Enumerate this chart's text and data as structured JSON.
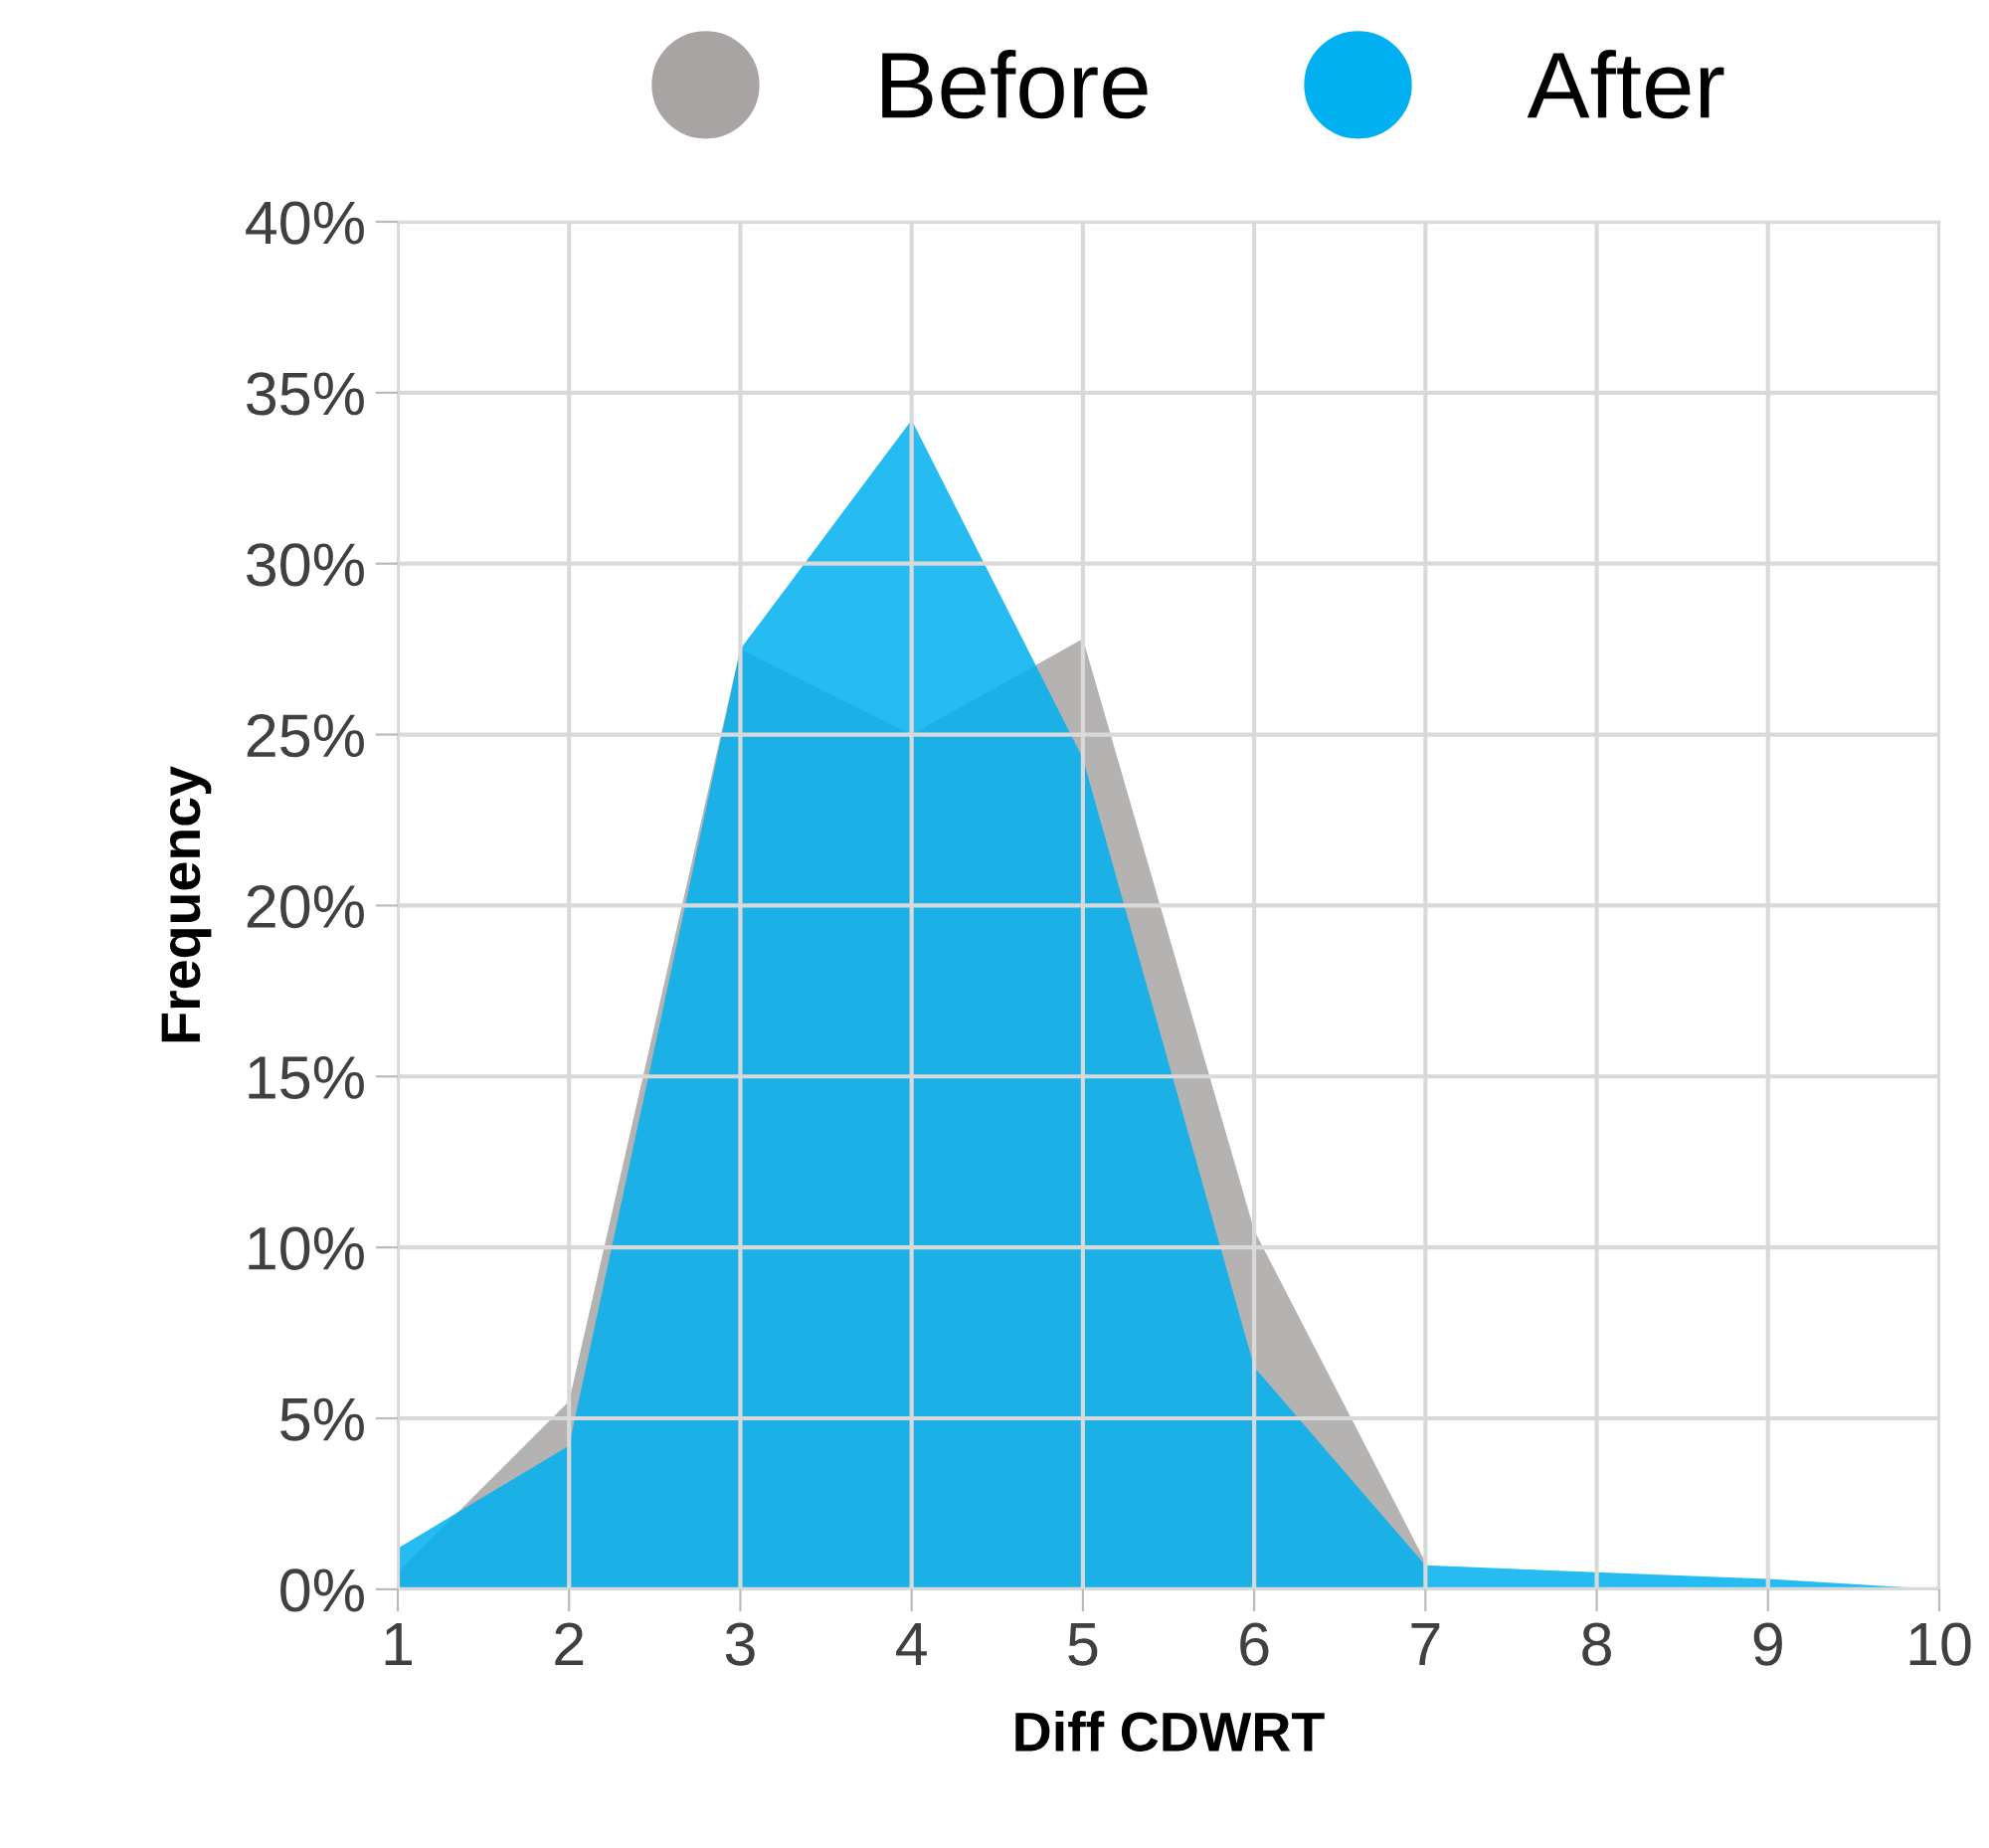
{
  "chart_data": {
    "type": "area",
    "xlabel": "Diff CDWRT",
    "ylabel": "Frequency",
    "x": [
      1,
      2,
      3,
      4,
      5,
      6,
      7,
      8,
      9,
      10
    ],
    "series": [
      {
        "name": "Before",
        "color": "#a8a4a4",
        "values": [
          0.5,
          5.5,
          27.5,
          25,
          27.8,
          10.5,
          0.8,
          null,
          null,
          null
        ]
      },
      {
        "name": "After",
        "color": "#00b0f0",
        "values": [
          1.2,
          4.2,
          27.5,
          34.2,
          24.3,
          6.5,
          0.7,
          0.5,
          0.3,
          0
        ]
      }
    ],
    "xlim": [
      1,
      10
    ],
    "xticks": [
      1,
      2,
      3,
      4,
      5,
      6,
      7,
      8,
      9,
      10
    ],
    "ylim": [
      0,
      40
    ],
    "yticks": [
      {
        "value": 0,
        "label": "0%"
      },
      {
        "value": 5,
        "label": "5%"
      },
      {
        "value": 10,
        "label": "10%"
      },
      {
        "value": 15,
        "label": "15%"
      },
      {
        "value": 20,
        "label": "20%"
      },
      {
        "value": 25,
        "label": "25%"
      },
      {
        "value": 30,
        "label": "30%"
      },
      {
        "value": 35,
        "label": "35%"
      },
      {
        "value": 40,
        "label": "40%"
      }
    ],
    "grid": true,
    "legend": "top"
  }
}
